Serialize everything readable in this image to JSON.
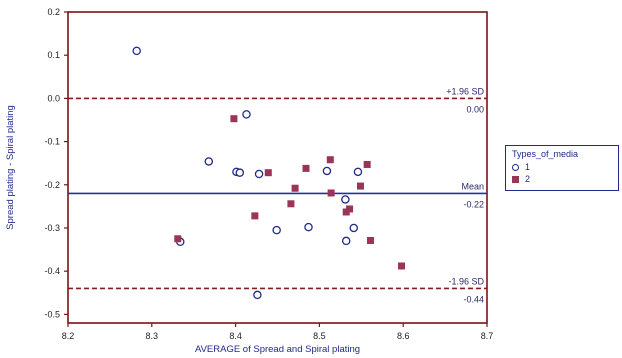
{
  "chart_data": {
    "type": "scatter",
    "xlabel": "AVERAGE of Spread and Spiral plating",
    "ylabel": "Spread plating - Spiral plating",
    "xlim": [
      8.2,
      8.7
    ],
    "ylim": [
      -0.52,
      0.2
    ],
    "x_ticks": [
      "8.2",
      "8.3",
      "8.4",
      "8.5",
      "8.6",
      "8.7"
    ],
    "x_tick_values": [
      8.2,
      8.3,
      8.4,
      8.5,
      8.6,
      8.7
    ],
    "y_ticks": [
      "0.2",
      "0.1",
      "0.0",
      "-0.1",
      "-0.2",
      "-0.3",
      "-0.4",
      "-0.5"
    ],
    "y_tick_values": [
      0.2,
      0.1,
      0.0,
      -0.1,
      -0.2,
      -0.3,
      -0.4,
      -0.5
    ],
    "reference_lines": [
      {
        "label": "+1.96 SD",
        "value_label": "0.00",
        "y": 0.0,
        "style": "dashed",
        "color": "#8b1a1a"
      },
      {
        "label": "Mean",
        "value_label": "-0.22",
        "y": -0.22,
        "style": "solid",
        "color": "#2a2fa0"
      },
      {
        "label": "-1.96 SD",
        "value_label": "-0.44",
        "y": -0.44,
        "style": "dashed",
        "color": "#8b1a1a"
      }
    ],
    "legend": {
      "title": "Types_of_media",
      "placement": "right"
    },
    "series": [
      {
        "name": "1",
        "marker": "circle",
        "color": "#1f2a8a",
        "x": [
          8.282,
          8.413,
          8.368,
          8.401,
          8.405,
          8.428,
          8.449,
          8.487,
          8.509,
          8.531,
          8.546,
          8.334,
          8.426,
          8.532,
          8.541
        ],
        "y": [
          0.11,
          -0.037,
          -0.146,
          -0.17,
          -0.172,
          -0.175,
          -0.305,
          -0.298,
          -0.168,
          -0.234,
          -0.17,
          -0.332,
          -0.455,
          -0.33,
          -0.3
        ]
      },
      {
        "name": "2",
        "marker": "square",
        "color": "#9b3457",
        "x": [
          8.398,
          8.439,
          8.331,
          8.423,
          8.466,
          8.471,
          8.484,
          8.513,
          8.514,
          8.532,
          8.536,
          8.549,
          8.557,
          8.561,
          8.598
        ],
        "y": [
          -0.047,
          -0.172,
          -0.325,
          -0.272,
          -0.244,
          -0.208,
          -0.162,
          -0.142,
          -0.219,
          -0.263,
          -0.256,
          -0.203,
          -0.153,
          -0.329,
          -0.388
        ]
      }
    ]
  },
  "legend_items": [
    "1",
    "2"
  ]
}
